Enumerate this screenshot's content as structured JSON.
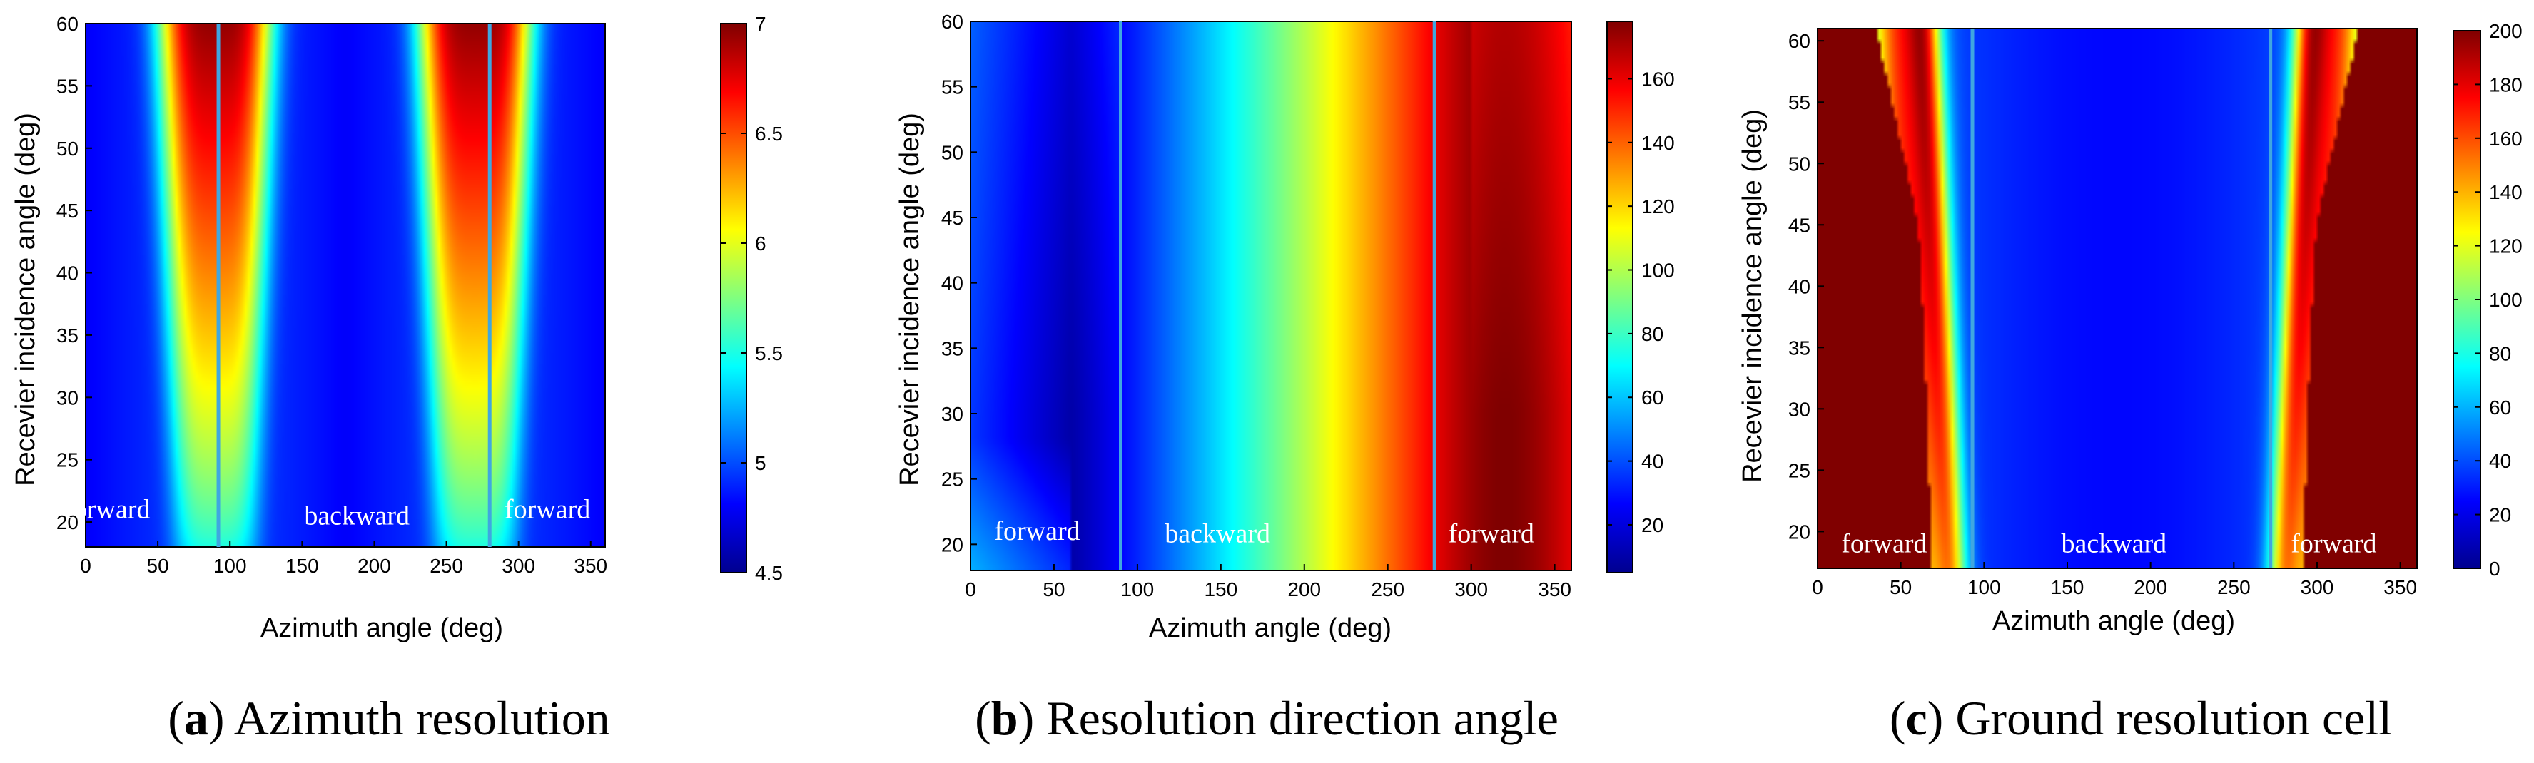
{
  "chart_data": [
    {
      "type": "heatmap",
      "id": "a",
      "caption_letter": "a",
      "caption_text": " Azimuth resolution",
      "xlabel": "Azimuth angle (deg)",
      "ylabel": "Recevier incidence angle (deg)",
      "xlim": [
        0,
        360
      ],
      "ylim": [
        18,
        60
      ],
      "xticks": [
        0,
        50,
        100,
        150,
        200,
        250,
        300,
        350
      ],
      "yticks": [
        20,
        25,
        30,
        35,
        40,
        45,
        50,
        55,
        60
      ],
      "colorbar": {
        "min": 4.5,
        "max": 7,
        "ticks": [
          "4.5",
          "5",
          "5.5",
          "6",
          "6.5",
          "7"
        ]
      },
      "model": "azimuth_resolution",
      "divider_angles": [
        92,
        280
      ],
      "divider_color": "#3fa7e0",
      "region_labels": [
        {
          "text": "forward",
          "x": 15,
          "y": 21
        },
        {
          "text": "backward",
          "x": 188,
          "y": 20.5
        },
        {
          "text": "forward",
          "x": 320,
          "y": 21
        }
      ]
    },
    {
      "type": "heatmap",
      "id": "b",
      "caption_letter": "b",
      "caption_text": " Resolution direction angle",
      "xlabel": "Azimuth angle (deg)",
      "ylabel": "Recevier incidence angle (deg)",
      "xlim": [
        0,
        360
      ],
      "ylim": [
        18,
        60
      ],
      "xticks": [
        0,
        50,
        100,
        150,
        200,
        250,
        300,
        350
      ],
      "yticks": [
        20,
        25,
        30,
        35,
        40,
        45,
        50,
        55,
        60
      ],
      "colorbar": {
        "min": 5,
        "max": 178,
        "ticks": [
          "20",
          "40",
          "60",
          "80",
          "100",
          "120",
          "140",
          "160"
        ]
      },
      "model": "direction_angle",
      "divider_angles": [
        90,
        278
      ],
      "divider_color": "#3fa7e0",
      "region_labels": [
        {
          "text": "forward",
          "x": 40,
          "y": 21
        },
        {
          "text": "backward",
          "x": 148,
          "y": 20.8
        },
        {
          "text": "forward",
          "x": 312,
          "y": 20.8
        }
      ]
    },
    {
      "type": "heatmap",
      "id": "c",
      "caption_letter": "c",
      "caption_text": " Ground resolution cell",
      "xlabel": "Azimuth angle (deg)",
      "ylabel": "Recevier incidence angle (deg)",
      "xlim": [
        0,
        360
      ],
      "ylim": [
        17,
        61
      ],
      "xticks": [
        0,
        50,
        100,
        150,
        200,
        250,
        300,
        350
      ],
      "yticks": [
        20,
        25,
        30,
        35,
        40,
        45,
        50,
        55,
        60
      ],
      "colorbar": {
        "min": 0,
        "max": 200,
        "ticks": [
          "0",
          "20",
          "40",
          "60",
          "80",
          "100",
          "120",
          "140",
          "160",
          "180",
          "200"
        ]
      },
      "model": "ground_cell",
      "divider_angles": [
        93,
        272
      ],
      "divider_color": "#3fa7e0",
      "region_labels": [
        {
          "text": "forward",
          "x": 40,
          "y": 19
        },
        {
          "text": "backward",
          "x": 178,
          "y": 19
        },
        {
          "text": "forward",
          "x": 310,
          "y": 19
        }
      ]
    }
  ]
}
